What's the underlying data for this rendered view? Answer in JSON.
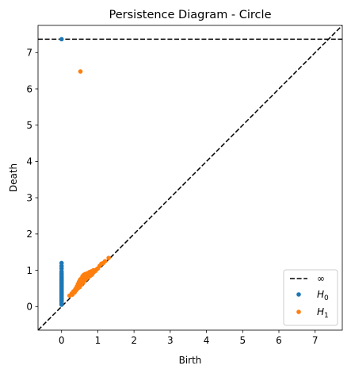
{
  "chart_data": {
    "type": "scatter",
    "title": "Persistence Diagram - Circle",
    "xlabel": "Birth",
    "ylabel": "Death",
    "xlim": [
      -0.65,
      7.75
    ],
    "ylim": [
      -0.65,
      7.75
    ],
    "xticks": [
      0,
      1,
      2,
      3,
      4,
      5,
      6,
      7
    ],
    "yticks": [
      0,
      1,
      2,
      3,
      4,
      5,
      6,
      7
    ],
    "grid": false,
    "legend_position": "bottom-right",
    "infinity_line": {
      "label": "∞",
      "y": 7.37,
      "color": "#000000",
      "style": "dashed"
    },
    "diagonal": {
      "color": "#000000",
      "style": "dashed"
    },
    "series": [
      {
        "name": "H0",
        "legend_base": "H",
        "legend_sub": "0",
        "color": "#1f77b4",
        "points": [
          [
            0,
            0.05
          ],
          [
            0,
            0.08
          ],
          [
            0,
            0.11
          ],
          [
            0,
            0.14
          ],
          [
            0,
            0.17
          ],
          [
            0,
            0.2
          ],
          [
            0,
            0.23
          ],
          [
            0,
            0.26
          ],
          [
            0,
            0.29
          ],
          [
            0,
            0.32
          ],
          [
            0,
            0.35
          ],
          [
            0,
            0.38
          ],
          [
            0,
            0.41
          ],
          [
            0,
            0.44
          ],
          [
            0,
            0.47
          ],
          [
            0,
            0.5
          ],
          [
            0,
            0.53
          ],
          [
            0,
            0.56
          ],
          [
            0,
            0.59
          ],
          [
            0,
            0.62
          ],
          [
            0,
            0.65
          ],
          [
            0,
            0.68
          ],
          [
            0,
            0.71
          ],
          [
            0,
            0.74
          ],
          [
            0,
            0.77
          ],
          [
            0,
            0.8
          ],
          [
            0,
            0.84
          ],
          [
            0,
            0.88
          ],
          [
            0,
            0.92
          ],
          [
            0,
            0.97
          ],
          [
            0,
            1.05
          ],
          [
            0,
            1.12
          ],
          [
            0,
            1.2
          ],
          [
            0,
            7.37
          ]
        ]
      },
      {
        "name": "H1",
        "legend_base": "H",
        "legend_sub": "1",
        "color": "#ff7f0e",
        "points": [
          [
            0.22,
            0.3
          ],
          [
            0.28,
            0.36
          ],
          [
            0.3,
            0.33
          ],
          [
            0.33,
            0.42
          ],
          [
            0.36,
            0.39
          ],
          [
            0.38,
            0.48
          ],
          [
            0.4,
            0.45
          ],
          [
            0.42,
            0.55
          ],
          [
            0.44,
            0.5
          ],
          [
            0.45,
            0.62
          ],
          [
            0.47,
            0.58
          ],
          [
            0.48,
            0.68
          ],
          [
            0.5,
            0.54
          ],
          [
            0.51,
            0.74
          ],
          [
            0.52,
            0.64
          ],
          [
            0.54,
            0.6
          ],
          [
            0.55,
            0.78
          ],
          [
            0.56,
            0.7
          ],
          [
            0.58,
            0.84
          ],
          [
            0.6,
            0.66
          ],
          [
            0.6,
            0.75
          ],
          [
            0.62,
            0.88
          ],
          [
            0.64,
            0.72
          ],
          [
            0.65,
            0.8
          ],
          [
            0.66,
            0.9
          ],
          [
            0.68,
            0.76
          ],
          [
            0.7,
            0.86
          ],
          [
            0.72,
            0.92
          ],
          [
            0.73,
            0.8
          ],
          [
            0.75,
            0.88
          ],
          [
            0.77,
            0.95
          ],
          [
            0.78,
            0.84
          ],
          [
            0.8,
            0.9
          ],
          [
            0.82,
            0.97
          ],
          [
            0.84,
            0.88
          ],
          [
            0.86,
            0.93
          ],
          [
            0.88,
            1.0
          ],
          [
            0.9,
            0.96
          ],
          [
            0.93,
            0.98
          ],
          [
            0.96,
            1.02
          ],
          [
            1.0,
            1.05
          ],
          [
            1.05,
            1.12
          ],
          [
            1.1,
            1.18
          ],
          [
            1.15,
            1.2
          ],
          [
            1.2,
            1.25
          ],
          [
            1.3,
            1.34
          ],
          [
            0.52,
            6.48
          ]
        ]
      }
    ]
  }
}
